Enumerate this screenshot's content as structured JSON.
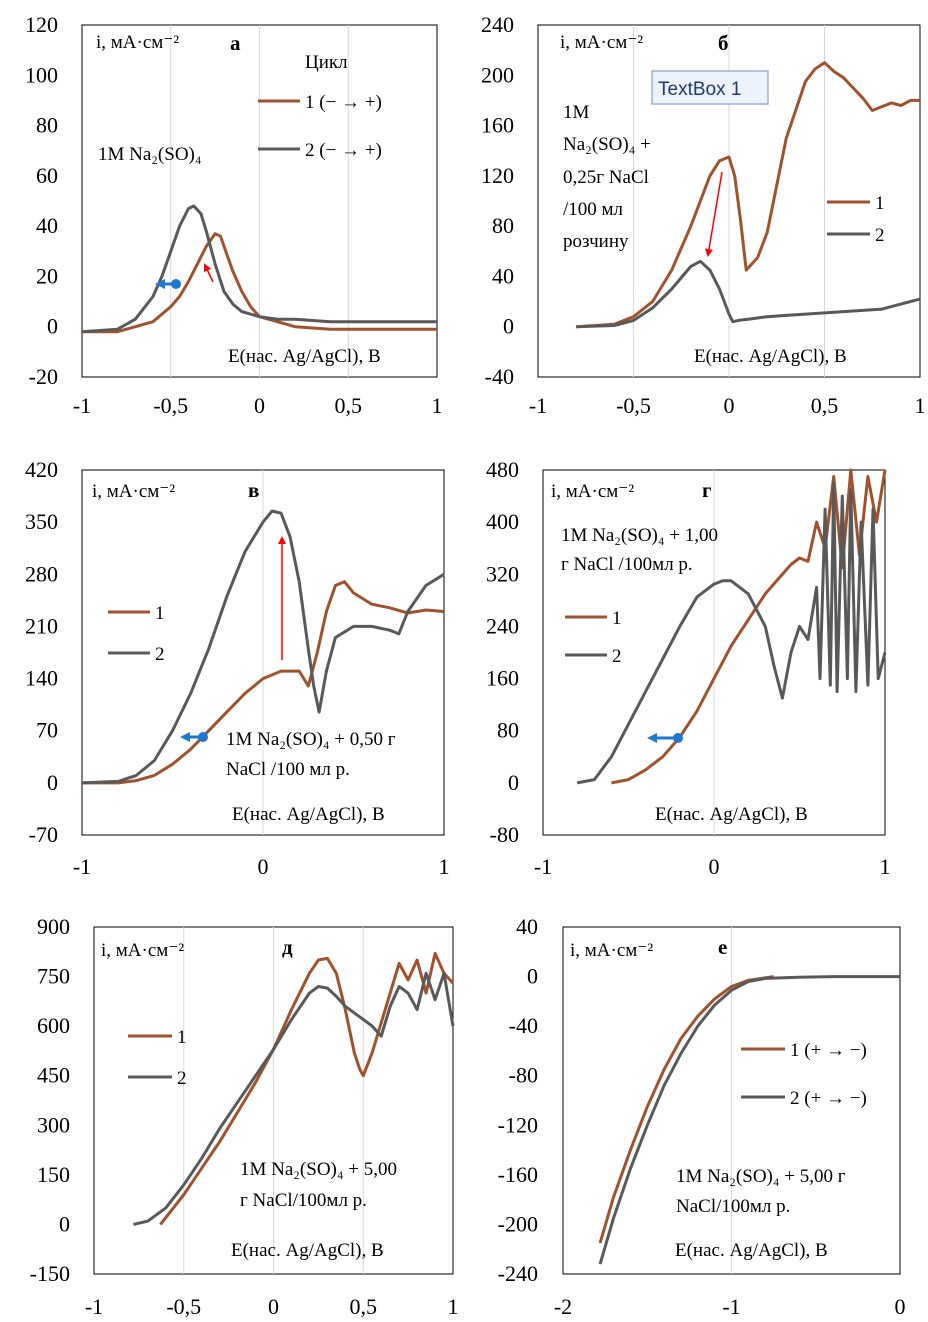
{
  "chart_data": [
    {
      "type": "line",
      "letter": "а",
      "ylabel": "i, мА·см⁻²",
      "xlabel": "E(нас. Ag/AgCl), В",
      "xlim": [
        -1,
        1
      ],
      "ylim": [
        -20,
        120
      ],
      "xticks": [
        -1,
        -0.5,
        0,
        0.5,
        1
      ],
      "xtick_labels": [
        "-1",
        "-0,5",
        "0",
        "0,5",
        "1"
      ],
      "yticks": [
        -20,
        0,
        20,
        40,
        60,
        80,
        100,
        120
      ],
      "ytick_labels": [
        "-20",
        "0",
        "20",
        "40",
        "60",
        "80",
        "100",
        "120"
      ],
      "legend_title": "Цикл",
      "annotation": "1M Na₂(SO)₄",
      "series": [
        {
          "name": "1 (− → +)",
          "color": "#a0522d",
          "x": [
            -1,
            -0.8,
            -0.6,
            -0.5,
            -0.45,
            -0.4,
            -0.35,
            -0.3,
            -0.25,
            -0.22,
            -0.2,
            -0.15,
            -0.1,
            -0.05,
            0,
            0.1,
            0.2,
            0.4,
            0.6,
            0.8,
            1
          ],
          "y": [
            -2,
            -2,
            2,
            8,
            12,
            18,
            25,
            32,
            37,
            36,
            32,
            22,
            14,
            8,
            4,
            2,
            0,
            -1,
            -1,
            -1,
            -1
          ]
        },
        {
          "name": "2 (− → +)",
          "color": "#595959",
          "x": [
            -1,
            -0.8,
            -0.7,
            -0.6,
            -0.55,
            -0.5,
            -0.45,
            -0.4,
            -0.37,
            -0.33,
            -0.3,
            -0.25,
            -0.2,
            -0.15,
            -0.1,
            0,
            0.1,
            0.2,
            0.4,
            0.6,
            0.8,
            1
          ],
          "y": [
            -2,
            -1,
            3,
            12,
            20,
            30,
            40,
            47,
            48,
            45,
            38,
            25,
            14,
            9,
            6,
            4,
            3,
            3,
            2,
            2,
            2,
            2
          ]
        }
      ]
    },
    {
      "type": "line",
      "letter": "б",
      "ylabel": "i, мА·см⁻²",
      "xlabel": "E(нас. Ag/AgCl), В",
      "xlim": [
        -1,
        1
      ],
      "ylim": [
        -40,
        240
      ],
      "xticks": [
        -1,
        -0.5,
        0,
        0.5,
        1
      ],
      "xtick_labels": [
        "-1",
        "-0,5",
        "0",
        "0,5",
        "1"
      ],
      "yticks": [
        -40,
        0,
        40,
        80,
        120,
        160,
        200,
        240
      ],
      "ytick_labels": [
        "-40",
        "0",
        "40",
        "80",
        "120",
        "160",
        "200",
        "240"
      ],
      "textbox": "TextBox 1",
      "annotation": [
        "1M",
        "Na₂(SO)₄ +",
        "0,25г NaCl",
        "/100 мл",
        "розчину"
      ],
      "series": [
        {
          "name": "1",
          "color": "#a0522d",
          "x": [
            -0.8,
            -0.6,
            -0.5,
            -0.4,
            -0.3,
            -0.2,
            -0.1,
            -0.05,
            0,
            0.03,
            0.06,
            0.09,
            0.15,
            0.2,
            0.3,
            0.4,
            0.45,
            0.5,
            0.55,
            0.6,
            0.65,
            0.7,
            0.75,
            0.8,
            0.85,
            0.9,
            0.95,
            1
          ],
          "y": [
            0,
            2,
            8,
            20,
            45,
            80,
            120,
            132,
            135,
            120,
            85,
            45,
            55,
            75,
            150,
            195,
            205,
            210,
            203,
            198,
            190,
            182,
            172,
            175,
            178,
            176,
            180,
            180
          ]
        },
        {
          "name": "2",
          "color": "#595959",
          "x": [
            -0.8,
            -0.6,
            -0.5,
            -0.4,
            -0.3,
            -0.2,
            -0.15,
            -0.1,
            -0.05,
            0,
            0.02,
            0.05,
            0.1,
            0.2,
            0.3,
            0.4,
            0.5,
            0.6,
            0.8,
            1
          ],
          "y": [
            0,
            1,
            5,
            15,
            30,
            48,
            52,
            45,
            30,
            10,
            4,
            5,
            6,
            8,
            9,
            10,
            11,
            12,
            14,
            22
          ]
        }
      ]
    },
    {
      "type": "line",
      "letter": "в",
      "ylabel": "i, мА·см⁻²",
      "xlabel": "E(нас. Ag/AgCl), В",
      "xlim": [
        -1,
        1
      ],
      "ylim": [
        -70,
        420
      ],
      "xticks": [
        -1,
        0,
        1
      ],
      "xtick_labels": [
        "-1",
        "0",
        "1"
      ],
      "yticks": [
        -70,
        0,
        70,
        140,
        210,
        280,
        350,
        420
      ],
      "ytick_labels": [
        "-70",
        "0",
        "70",
        "140",
        "210",
        "280",
        "350",
        "420"
      ],
      "annotation": [
        "1M Na₂(SO)₄ + 0,50 г",
        "NaCl /100 мл р."
      ],
      "series": [
        {
          "name": "1",
          "color": "#a0522d",
          "x": [
            -1,
            -0.8,
            -0.7,
            -0.6,
            -0.5,
            -0.4,
            -0.3,
            -0.2,
            -0.1,
            0,
            0.1,
            0.2,
            0.25,
            0.3,
            0.35,
            0.4,
            0.45,
            0.5,
            0.6,
            0.7,
            0.8,
            0.9,
            1
          ],
          "y": [
            0,
            0,
            3,
            10,
            25,
            45,
            70,
            95,
            120,
            140,
            150,
            150,
            130,
            175,
            230,
            265,
            270,
            255,
            240,
            235,
            228,
            232,
            230
          ]
        },
        {
          "name": "2",
          "color": "#595959",
          "x": [
            -1,
            -0.8,
            -0.7,
            -0.6,
            -0.5,
            -0.4,
            -0.3,
            -0.2,
            -0.1,
            0,
            0.05,
            0.1,
            0.15,
            0.2,
            0.25,
            0.28,
            0.31,
            0.35,
            0.4,
            0.5,
            0.6,
            0.7,
            0.75,
            0.8,
            0.9,
            1
          ],
          "y": [
            0,
            2,
            10,
            30,
            70,
            120,
            180,
            250,
            310,
            350,
            365,
            362,
            330,
            270,
            180,
            130,
            95,
            150,
            195,
            210,
            210,
            205,
            200,
            230,
            265,
            280
          ]
        }
      ]
    },
    {
      "type": "line",
      "letter": "г",
      "ylabel": "i, мА·см⁻²",
      "xlabel": "E(нас. Ag/AgCl), В",
      "xlim": [
        -1,
        1
      ],
      "ylim": [
        -80,
        480
      ],
      "xticks": [
        -1,
        0,
        1
      ],
      "xtick_labels": [
        "-1",
        "0",
        "1"
      ],
      "yticks": [
        -80,
        0,
        80,
        160,
        240,
        320,
        400,
        480
      ],
      "ytick_labels": [
        "-80",
        "0",
        "80",
        "160",
        "240",
        "320",
        "400",
        "480"
      ],
      "annotation": [
        "1M Na₂(SO)₄ + 1,00",
        "г NaCl /100мл р."
      ],
      "series": [
        {
          "name": "1",
          "color": "#a0522d",
          "x": [
            -0.6,
            -0.5,
            -0.4,
            -0.3,
            -0.2,
            -0.1,
            0,
            0.1,
            0.2,
            0.3,
            0.4,
            0.45,
            0.5,
            0.55,
            0.6,
            0.65,
            0.7,
            0.75,
            0.8,
            0.85,
            0.9,
            0.95,
            1
          ],
          "y": [
            0,
            5,
            20,
            40,
            70,
            110,
            160,
            210,
            250,
            290,
            320,
            335,
            345,
            340,
            400,
            360,
            470,
            330,
            480,
            350,
            470,
            400,
            480
          ]
        },
        {
          "name": "2",
          "color": "#595959",
          "x": [
            -0.8,
            -0.7,
            -0.6,
            -0.5,
            -0.4,
            -0.3,
            -0.2,
            -0.1,
            0,
            0.05,
            0.1,
            0.2,
            0.3,
            0.35,
            0.4,
            0.45,
            0.5,
            0.55,
            0.6,
            0.62,
            0.65,
            0.68,
            0.7,
            0.72,
            0.75,
            0.78,
            0.8,
            0.83,
            0.86,
            0.9,
            0.93,
            0.96,
            1
          ],
          "y": [
            0,
            5,
            40,
            90,
            140,
            190,
            240,
            285,
            305,
            310,
            310,
            290,
            240,
            180,
            130,
            200,
            240,
            220,
            300,
            160,
            420,
            150,
            460,
            140,
            440,
            160,
            450,
            140,
            400,
            150,
            420,
            160,
            200
          ]
        }
      ]
    },
    {
      "type": "line",
      "letter": "д",
      "ylabel": "i, мА·см⁻²",
      "xlabel": "E(нас. Ag/AgCl), В",
      "xlim": [
        -1,
        1
      ],
      "ylim": [
        -150,
        900
      ],
      "xticks": [
        -1,
        -0.5,
        0,
        0.5,
        1
      ],
      "xtick_labels": [
        "-1",
        "-0,5",
        "0",
        "0,5",
        "1"
      ],
      "yticks": [
        -150,
        0,
        150,
        300,
        450,
        600,
        750,
        900
      ],
      "ytick_labels": [
        "-150",
        "0",
        "150",
        "300",
        "450",
        "600",
        "750",
        "900"
      ],
      "annotation": [
        "1M Na₂(SO)₄ + 5,00",
        "г NaCl/100мл р."
      ],
      "series": [
        {
          "name": "1",
          "color": "#a0522d",
          "x": [
            -0.63,
            -0.5,
            -0.4,
            -0.3,
            -0.2,
            -0.1,
            0,
            0.1,
            0.2,
            0.25,
            0.3,
            0.35,
            0.4,
            0.45,
            0.48,
            0.5,
            0.55,
            0.6,
            0.65,
            0.7,
            0.75,
            0.8,
            0.85,
            0.9,
            0.95,
            1
          ],
          "y": [
            0,
            90,
            170,
            250,
            340,
            430,
            530,
            650,
            760,
            800,
            805,
            760,
            650,
            520,
            470,
            450,
            520,
            610,
            700,
            790,
            740,
            800,
            700,
            820,
            760,
            730
          ]
        },
        {
          "name": "2",
          "color": "#595959",
          "x": [
            -0.78,
            -0.7,
            -0.6,
            -0.5,
            -0.4,
            -0.3,
            -0.2,
            -0.1,
            0,
            0.1,
            0.2,
            0.25,
            0.3,
            0.35,
            0.4,
            0.45,
            0.5,
            0.55,
            0.6,
            0.65,
            0.7,
            0.75,
            0.8,
            0.85,
            0.9,
            0.95,
            1
          ],
          "y": [
            0,
            10,
            50,
            120,
            200,
            290,
            370,
            450,
            530,
            620,
            700,
            720,
            715,
            690,
            660,
            640,
            620,
            600,
            570,
            660,
            720,
            700,
            650,
            760,
            680,
            760,
            600
          ]
        }
      ]
    },
    {
      "type": "line",
      "letter": "е",
      "ylabel": "i, мА·см⁻²",
      "xlabel": "E(нас. Ag/AgCl), В",
      "xlim": [
        -2,
        0
      ],
      "ylim": [
        -240,
        40
      ],
      "xticks": [
        -2,
        -1,
        0
      ],
      "xtick_labels": [
        "-2",
        "-1",
        "0"
      ],
      "yticks": [
        -240,
        -200,
        -160,
        -120,
        -80,
        -40,
        0,
        40
      ],
      "ytick_labels": [
        "-240",
        "-200",
        "-160",
        "-120",
        "-80",
        "-40",
        "0",
        "40"
      ],
      "annotation": [
        "1M Na₂(SO)₄ + 5,00 г",
        "NaCl/100мл р."
      ],
      "series": [
        {
          "name": "1 (+ → −)",
          "color": "#a0522d",
          "x": [
            -1.78,
            -1.7,
            -1.6,
            -1.5,
            -1.4,
            -1.3,
            -1.2,
            -1.1,
            -1.0,
            -0.9,
            -0.8,
            -0.75
          ],
          "y": [
            -215,
            -178,
            -140,
            -105,
            -75,
            -50,
            -32,
            -18,
            -8,
            -3,
            -1,
            0
          ]
        },
        {
          "name": "2 (+ → −)",
          "color": "#595959",
          "x": [
            -1.78,
            -1.7,
            -1.6,
            -1.5,
            -1.4,
            -1.3,
            -1.2,
            -1.1,
            -1.0,
            -0.9,
            -0.8,
            -0.6,
            -0.4,
            -0.2,
            0
          ],
          "y": [
            -232,
            -195,
            -155,
            -120,
            -88,
            -62,
            -40,
            -23,
            -11,
            -4,
            -1.5,
            -0.5,
            0,
            0,
            0
          ]
        }
      ]
    }
  ]
}
